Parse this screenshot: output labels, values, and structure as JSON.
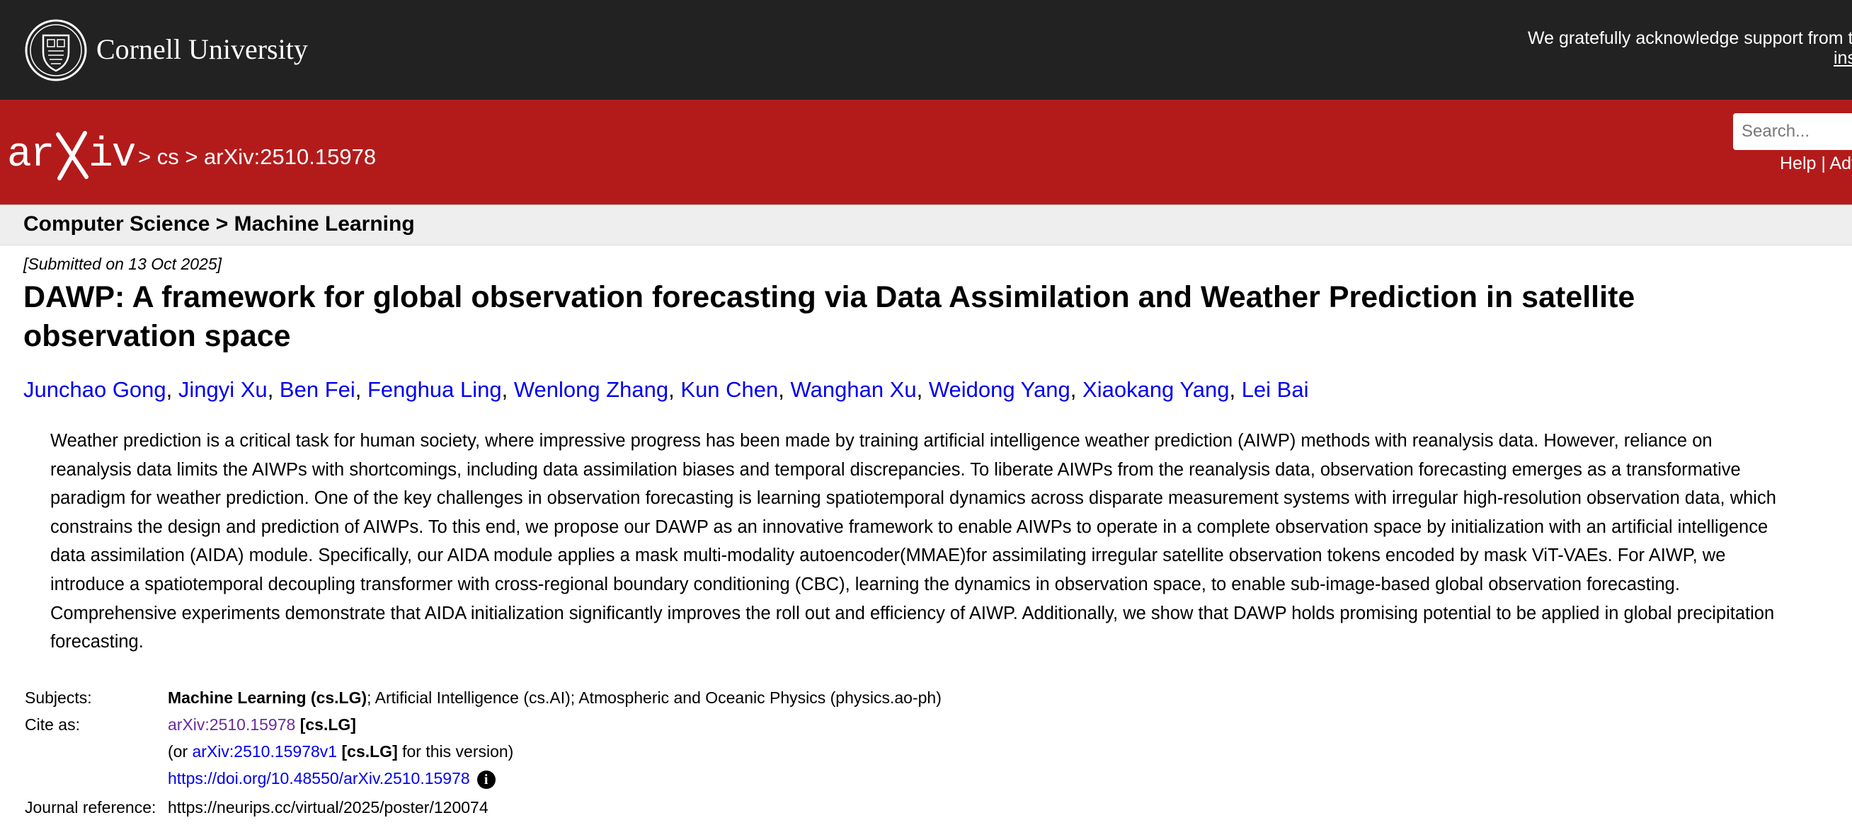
{
  "topbar": {
    "institution": "Cornell University",
    "acknowledgement": "We gratefully acknowledge support from the",
    "acknowledgement_link": "ins"
  },
  "header": {
    "breadcrumb": "> cs > arXiv:2510.15978",
    "search_placeholder": "Search...",
    "help_links": "Help | Adv"
  },
  "subheader": {
    "category": "Computer Science > Machine Learning"
  },
  "paper": {
    "dateline": "[Submitted on 13 Oct 2025]",
    "title": "DAWP: A framework for global observation forecasting via Data Assimilation and Weather Prediction in satellite observation space",
    "authors": [
      "Junchao Gong",
      "Jingyi Xu",
      "Ben Fei",
      "Fenghua Ling",
      "Wenlong Zhang",
      "Kun Chen",
      "Wanghan Xu",
      "Weidong Yang",
      "Xiaokang Yang",
      "Lei Bai"
    ],
    "abstract": "Weather prediction is a critical task for human society, where impressive progress has been made by training artificial intelligence weather prediction (AIWP) methods with reanalysis data. However, reliance on reanalysis data limits the AIWPs with shortcomings, including data assimilation biases and temporal discrepancies. To liberate AIWPs from the reanalysis data, observation forecasting emerges as a transformative paradigm for weather prediction. One of the key challenges in observation forecasting is learning spatiotemporal dynamics across disparate measurement systems with irregular high-resolution observation data, which constrains the design and prediction of AIWPs. To this end, we propose our DAWP as an innovative framework to enable AIWPs to operate in a complete observation space by initialization with an artificial intelligence data assimilation (AIDA) module. Specifically, our AIDA module applies a mask multi-modality autoencoder(MMAE)for assimilating irregular satellite observation tokens encoded by mask ViT-VAEs. For AIWP, we introduce a spatiotemporal decoupling transformer with cross-regional boundary conditioning (CBC), learning the dynamics in observation space, to enable sub-image-based global observation forecasting. Comprehensive experiments demonstrate that AIDA initialization significantly improves the roll out and efficiency of AIWP. Additionally, we show that DAWP holds promising potential to be applied in global precipitation forecasting."
  },
  "metadata": {
    "subjects_label": "Subjects:",
    "subjects_primary": "Machine Learning (cs.LG)",
    "subjects_rest": "; Artificial Intelligence (cs.AI); Atmospheric and Oceanic Physics (physics.ao-ph)",
    "cite_label": "Cite as:",
    "cite_id": "arXiv:2510.15978",
    "cite_cat": "[cs.LG]",
    "cite_or": "(or ",
    "cite_version_id": "arXiv:2510.15978v1",
    "cite_version_cat": "[cs.LG]",
    "cite_version_suffix": " for this version)",
    "doi": "https://doi.org/10.48550/arXiv.2510.15978",
    "journal_label": "Journal reference:",
    "journal_value": "https://neurips.cc/virtual/2025/poster/120074"
  }
}
